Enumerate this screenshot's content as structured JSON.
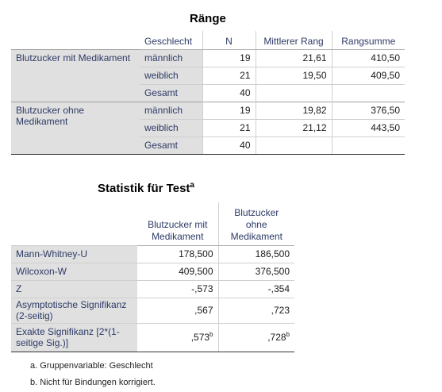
{
  "table1": {
    "title": "Ränge",
    "headers": {
      "group": "Geschlecht",
      "n": "N",
      "mean_rank": "Mittlerer Rang",
      "rank_sum": "Rangsumme"
    },
    "groups": [
      {
        "label": "Blutzucker mit Medikament",
        "rows": [
          {
            "label": "männlich",
            "n": "19",
            "mean_rank": "21,61",
            "rank_sum": "410,50"
          },
          {
            "label": "weiblich",
            "n": "21",
            "mean_rank": "19,50",
            "rank_sum": "409,50"
          },
          {
            "label": "Gesamt",
            "n": "40",
            "mean_rank": "",
            "rank_sum": ""
          }
        ]
      },
      {
        "label": "Blutzucker ohne Medikament",
        "rows": [
          {
            "label": "männlich",
            "n": "19",
            "mean_rank": "19,82",
            "rank_sum": "376,50"
          },
          {
            "label": "weiblich",
            "n": "21",
            "mean_rank": "21,12",
            "rank_sum": "443,50"
          },
          {
            "label": "Gesamt",
            "n": "40",
            "mean_rank": "",
            "rank_sum": ""
          }
        ]
      }
    ]
  },
  "table2": {
    "title": "Statistik für Test",
    "title_sup": "a",
    "headers": [
      "Blutzucker mit Medikament",
      "Blutzucker ohne Medikament"
    ],
    "rows": [
      {
        "label": "Mann-Whitney-U",
        "v1": "178,500",
        "v2": "186,500",
        "s1": "",
        "s2": ""
      },
      {
        "label": "Wilcoxon-W",
        "v1": "409,500",
        "v2": "376,500",
        "s1": "",
        "s2": ""
      },
      {
        "label": "Z",
        "v1": "-,573",
        "v2": "-,354",
        "s1": "",
        "s2": ""
      },
      {
        "label": "Asymptotische Signifikanz (2-seitig)",
        "v1": ",567",
        "v2": ",723",
        "s1": "",
        "s2": ""
      },
      {
        "label": "Exakte Signifikanz [2*(1-seitige Sig.)]",
        "v1": ",573",
        "v2": ",728",
        "s1": "b",
        "s2": "b"
      }
    ]
  },
  "footnotes": [
    "a. Gruppenvariable: Geschlecht",
    "b. Nicht für Bindungen korrigiert."
  ]
}
